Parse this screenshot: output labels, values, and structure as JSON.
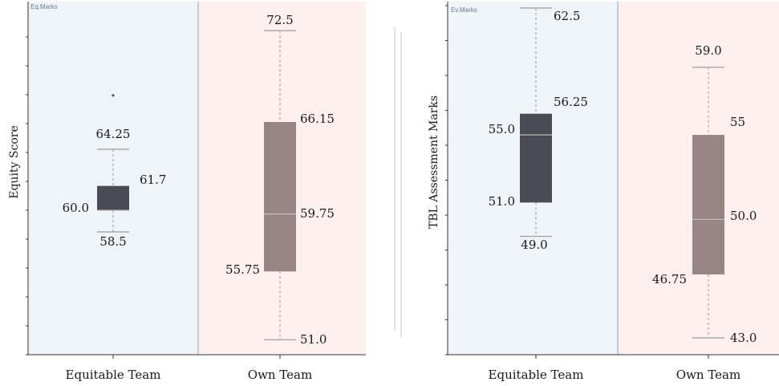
{
  "colors": {
    "bg_equitable": "#eff4f9",
    "bg_own": "#fff0f0",
    "divider": "#8aa0cc",
    "box_equitable": "#4a4a54",
    "box_own": "#968583",
    "whisker": "#aaaaaa",
    "axis": "#333333"
  },
  "chart_data": [
    {
      "type": "box",
      "panel_label": "Eq.Marks",
      "ylabel": "Equity Score",
      "categories": [
        "Equitable Team",
        "Own Team"
      ],
      "series": [
        {
          "category": "Equitable Team",
          "min": 58.5,
          "q1": 60.0,
          "median": 60.0,
          "q3": 61.7,
          "max": 64.25,
          "outliers": [
            68.0
          ],
          "labels": {
            "min": "58.5",
            "q1": "60.0",
            "q3": "61.7",
            "max": "64.25"
          }
        },
        {
          "category": "Own Team",
          "min": 51.0,
          "q1": 55.75,
          "median": 59.75,
          "q3": 66.15,
          "max": 72.5,
          "outliers": [],
          "labels": {
            "min": "51.0",
            "q1": "55.75",
            "median": "59.75",
            "q3": "66.15",
            "max": "72.5"
          }
        }
      ]
    },
    {
      "type": "box",
      "panel_label": "Ev.Marks",
      "ylabel": "TBL Assessment Marks",
      "categories": [
        "Equitable Team",
        "Own Team"
      ],
      "series": [
        {
          "category": "Equitable Team",
          "min": 49.0,
          "q1": 51.0,
          "median": 55.0,
          "q3": 56.25,
          "max": 62.5,
          "outliers": [],
          "labels": {
            "min": "49.0",
            "q1": "51.0",
            "median": "55.0",
            "q3": "56.25",
            "max": "62.5"
          }
        },
        {
          "category": "Own Team",
          "min": 43.0,
          "q1": 46.75,
          "median": 50.0,
          "q3": 55.0,
          "max": 59.0,
          "outliers": [],
          "labels": {
            "min": "43.0",
            "q1": "46.75",
            "median": "50.0",
            "q3": "55",
            "max": "59.0"
          }
        }
      ]
    }
  ]
}
